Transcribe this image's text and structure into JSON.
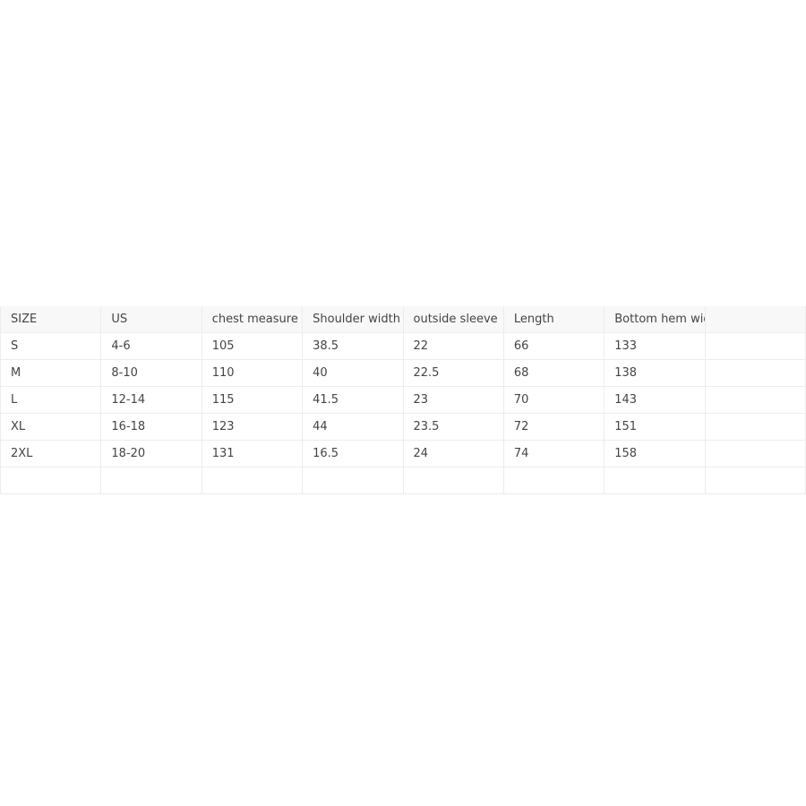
{
  "table": {
    "headers": [
      "SIZE",
      "US",
      "chest measure",
      "Shoulder width",
      "outside sleeve",
      "Length",
      "Bottom hem width",
      ""
    ],
    "rows": [
      [
        "S",
        "4-6",
        "105",
        "38.5",
        "22",
        "66",
        "133",
        ""
      ],
      [
        "M",
        "8-10",
        "110",
        "40",
        "22.5",
        "68",
        "138",
        ""
      ],
      [
        "L",
        "12-14",
        "115",
        "41.5",
        "23",
        "70",
        "143",
        ""
      ],
      [
        "XL",
        "16-18",
        "123",
        "44",
        "23.5",
        "72",
        "151",
        ""
      ],
      [
        "2XL",
        "18-20",
        "131",
        "16.5",
        "24",
        "74",
        "158",
        ""
      ],
      [
        "",
        "",
        "",
        "",
        "",
        "",
        "",
        ""
      ]
    ]
  }
}
